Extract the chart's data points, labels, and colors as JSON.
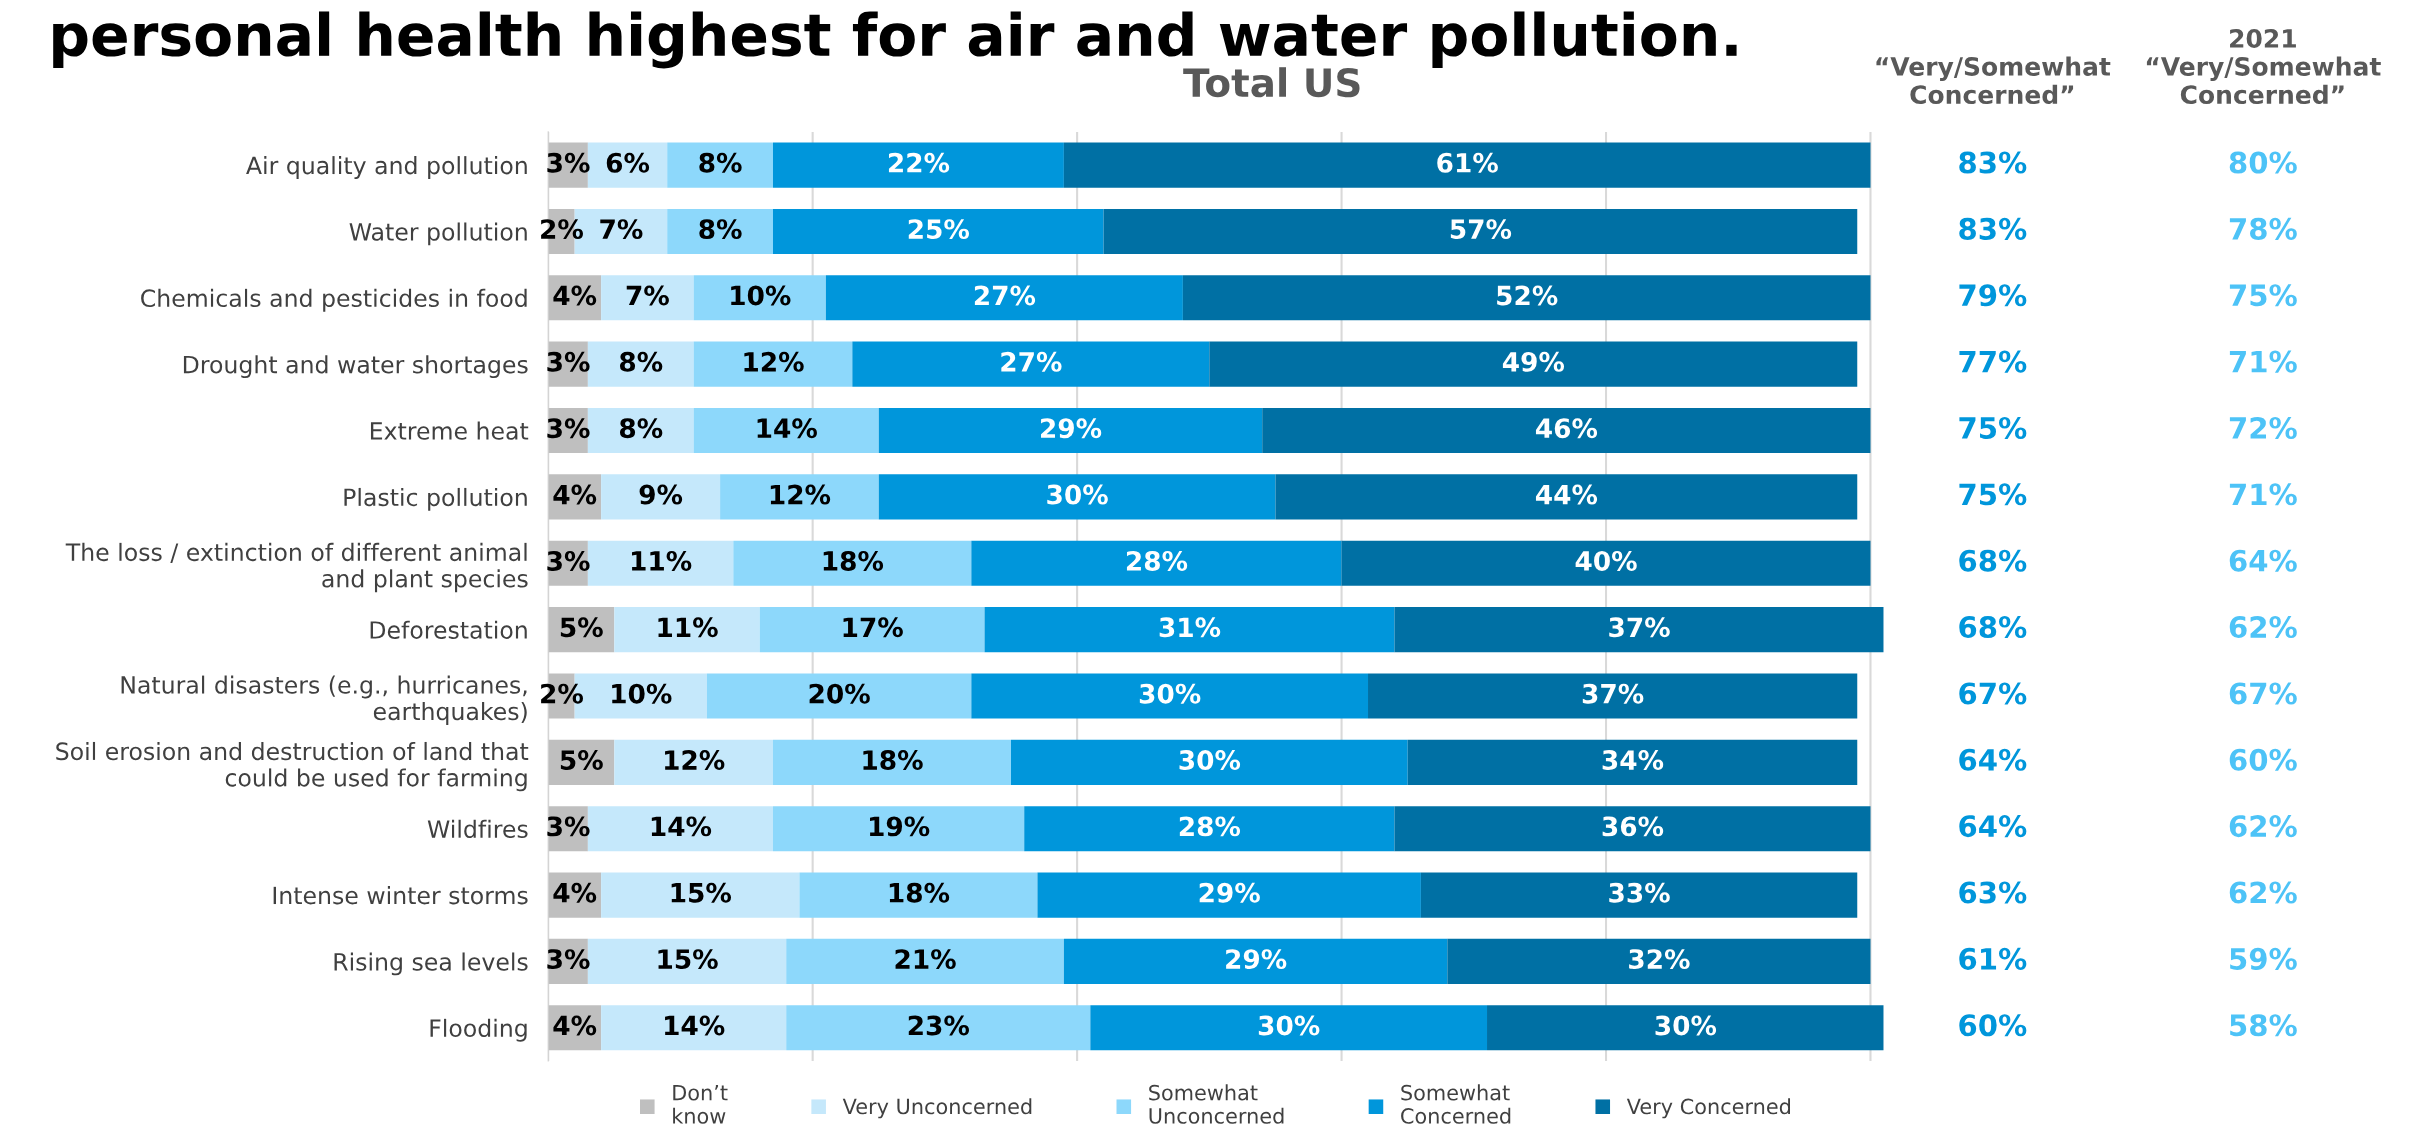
{
  "chart_data": {
    "type": "bar",
    "orientation": "horizontal",
    "stacked": true,
    "title": "personal health highest for air and water pollution.",
    "subtitle": "Total US",
    "categories": [
      "Air quality and pollution",
      "Water pollution",
      "Chemicals and pesticides in food",
      "Drought and water shortages",
      "Extreme heat",
      "Plastic pollution",
      "The loss / extinction of different animal\nand plant species",
      "Deforestation",
      "Natural disasters (e.g., hurricanes,\nearthquakes)",
      "Soil erosion and destruction of land that\ncould be used for farming",
      "Wildfires",
      "Intense winter storms",
      "Rising sea levels",
      "Flooding"
    ],
    "series": [
      {
        "name": "Don’t\nknow",
        "color": "#bfbfbf",
        "values": [
          3,
          2,
          4,
          3,
          3,
          4,
          3,
          5,
          2,
          5,
          3,
          4,
          3,
          4
        ],
        "value_labels": [
          "3%",
          "2%",
          "4%",
          "3%",
          "3%",
          "4%",
          "3%",
          "5%",
          "2%",
          "5%",
          "3%",
          "4%",
          "3%",
          "4%"
        ]
      },
      {
        "name": "Very Unconcerned",
        "color": "#c5e8fb",
        "values": [
          6,
          7,
          7,
          8,
          8,
          9,
          11,
          11,
          10,
          12,
          14,
          15,
          15,
          14
        ],
        "value_labels": [
          "6%",
          "7%",
          "7%",
          "8%",
          "8%",
          "9%",
          "11%",
          "11%",
          "10%",
          "12%",
          "14%",
          "15%",
          "15%",
          "14%"
        ]
      },
      {
        "name": "Somewhat\nUnconcerned",
        "color": "#8dd8fb",
        "values": [
          8,
          8,
          10,
          12,
          14,
          12,
          18,
          17,
          20,
          18,
          19,
          18,
          21,
          23
        ],
        "value_labels": [
          "8%",
          "8%",
          "10%",
          "12%",
          "14%",
          "12%",
          "18%",
          "17%",
          "20%",
          "18%",
          "19%",
          "18%",
          "21%",
          "23%"
        ]
      },
      {
        "name": "Somewhat\nConcerned",
        "color": "#0096db",
        "values": [
          22,
          25,
          27,
          27,
          29,
          30,
          28,
          31,
          30,
          30,
          28,
          29,
          29,
          30
        ],
        "value_labels": [
          "22%",
          "25%",
          "27%",
          "27%",
          "29%",
          "30%",
          "28%",
          "31%",
          "30%",
          "30%",
          "28%",
          "29%",
          "29%",
          "30%"
        ]
      },
      {
        "name": "Very Concerned",
        "color": "#0070a4",
        "values": [
          61,
          57,
          52,
          49,
          46,
          44,
          40,
          37,
          37,
          34,
          36,
          33,
          32,
          30
        ],
        "value_labels": [
          "61%",
          "57%",
          "52%",
          "49%",
          "46%",
          "44%",
          "40%",
          "37%",
          "37%",
          "34%",
          "36%",
          "33%",
          "32%",
          "30%"
        ]
      }
    ],
    "tick_labels": "y",
    "grid": "x",
    "legend": "bottom",
    "annotations": [
      "“Very/Somewhat\nConcerned”",
      "2021\n“Very/Somewhat\nConcerned”",
      "83%",
      "83%",
      "79%",
      "77%",
      "75%",
      "75%",
      "68%",
      "68%",
      "67%",
      "64%",
      "64%",
      "63%",
      "61%",
      "60%",
      "80%",
      "78%",
      "75%",
      "71%",
      "72%",
      "71%",
      "64%",
      "62%",
      "67%",
      "60%",
      "62%",
      "62%",
      "59%",
      "58%"
    ]
  }
}
